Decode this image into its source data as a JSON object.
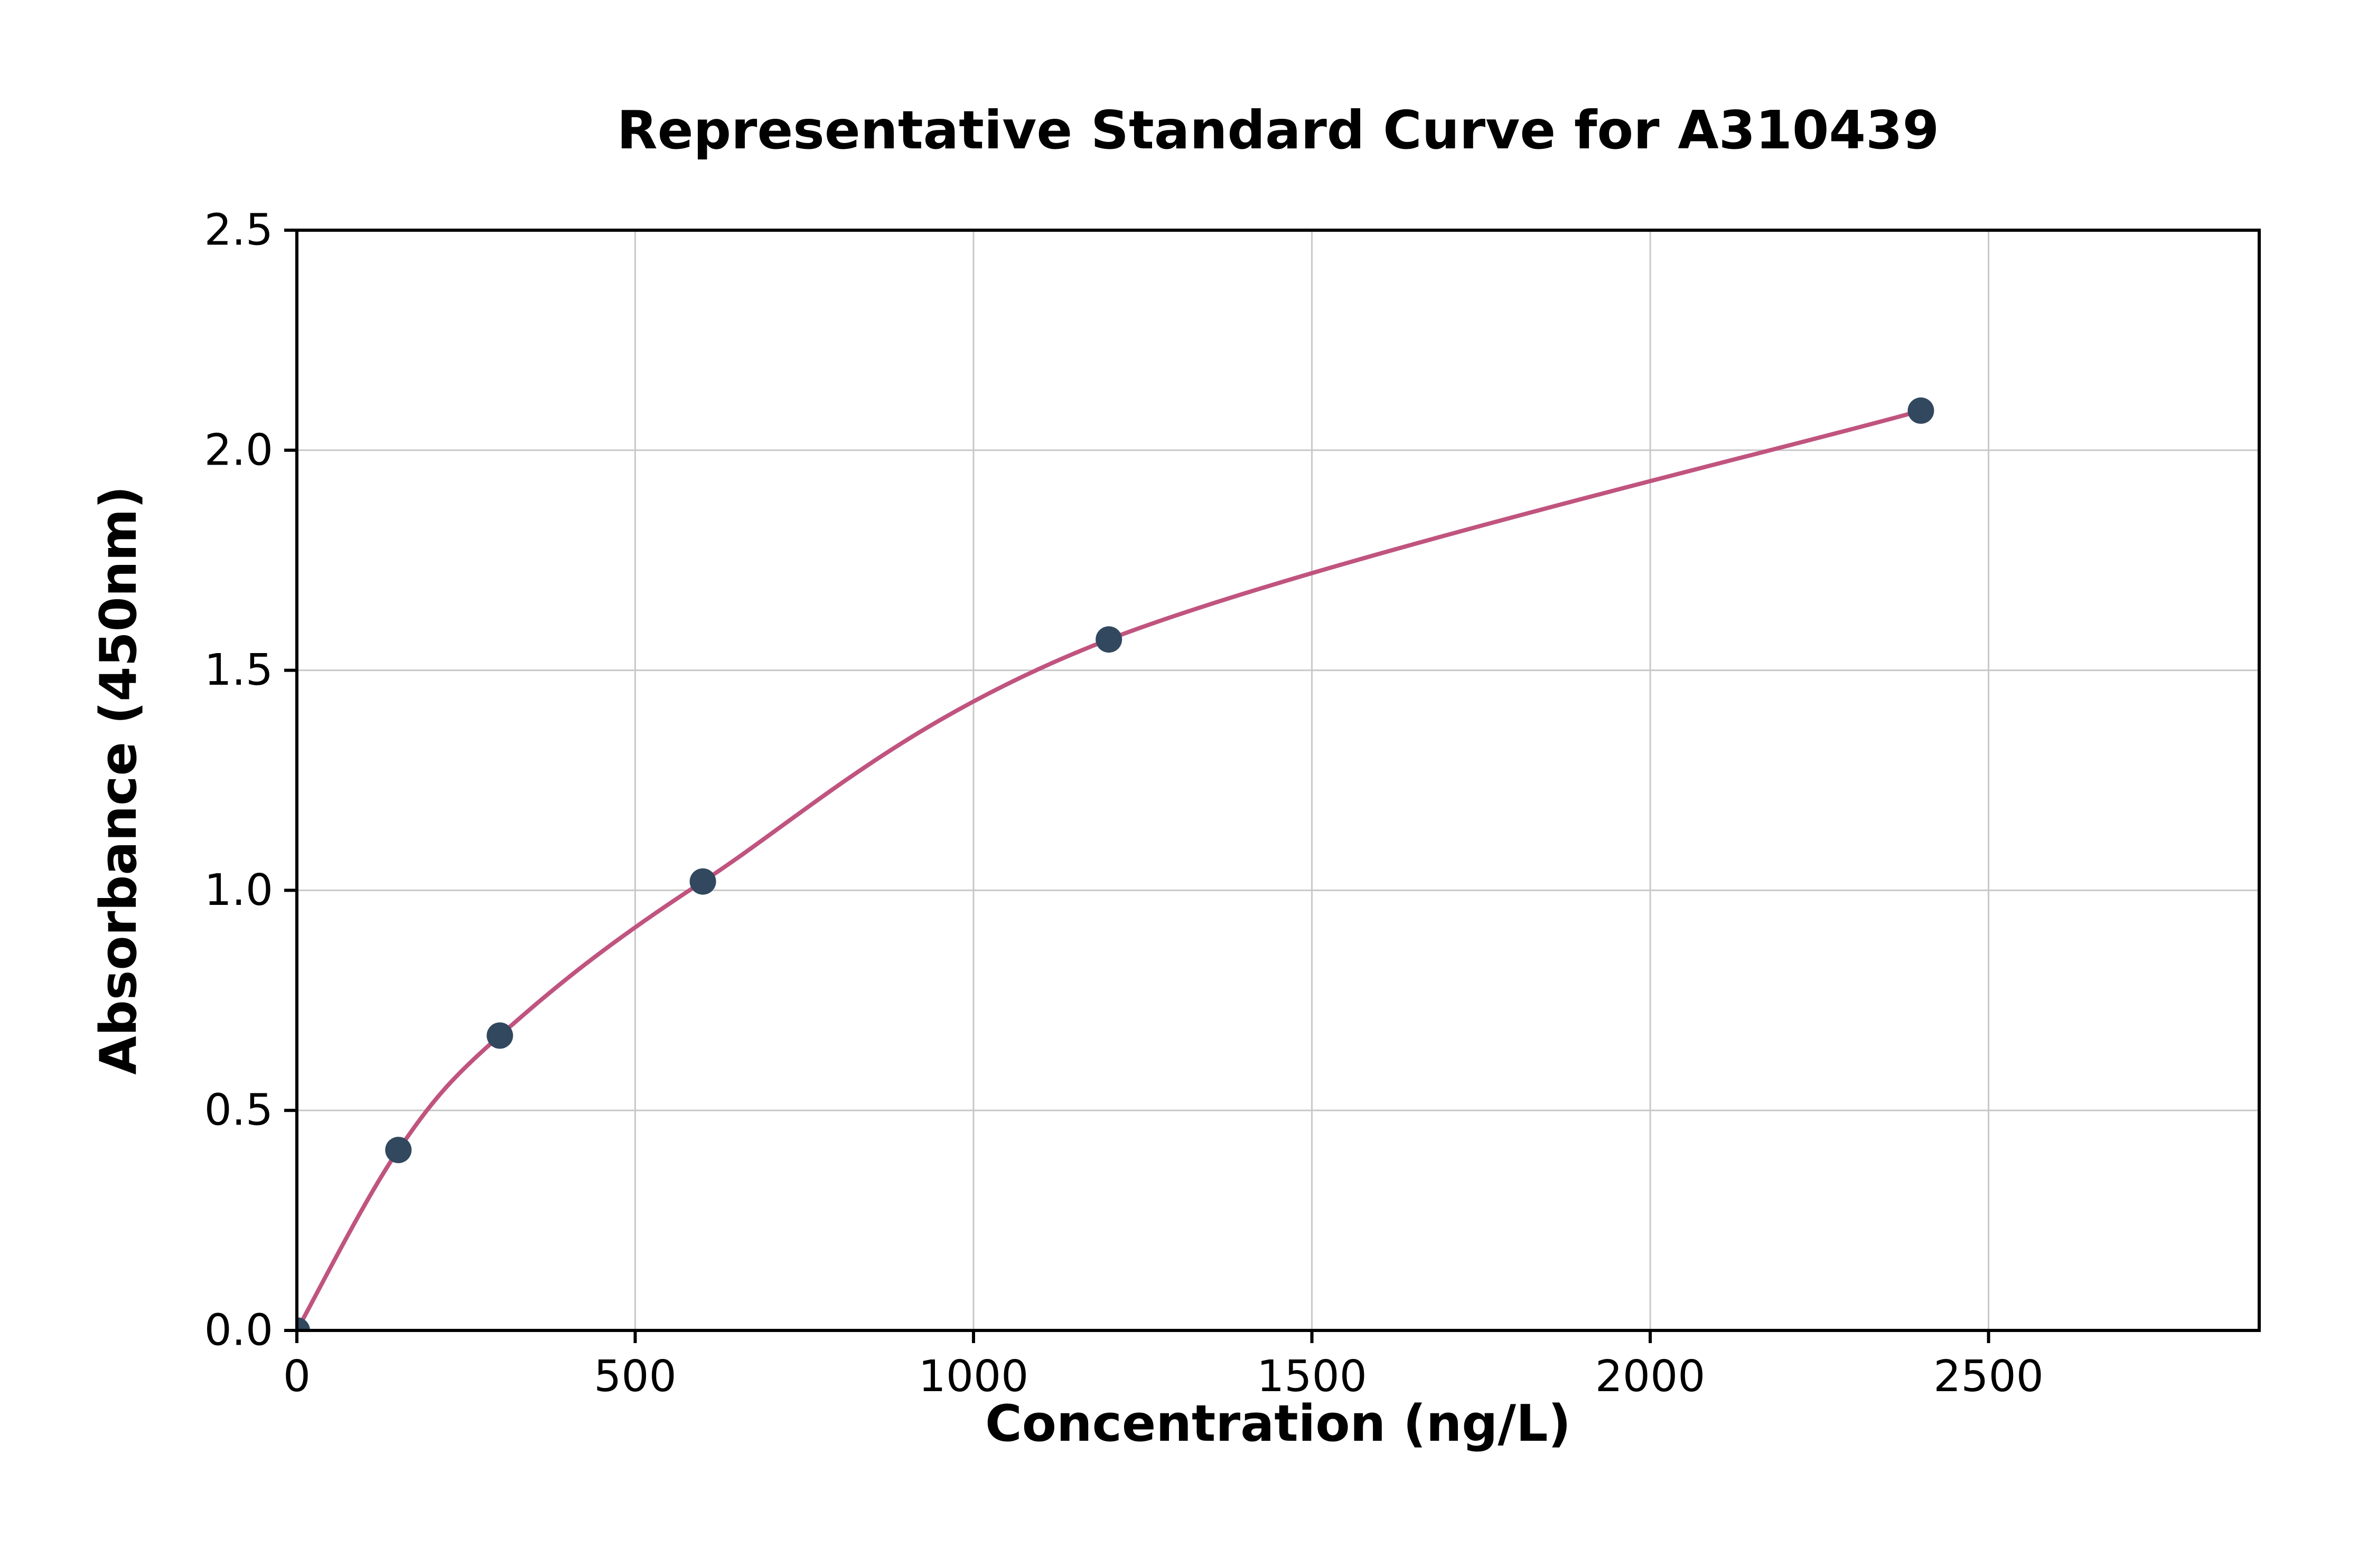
{
  "chart_data": {
    "type": "scatter",
    "title": "Representative Standard Curve for A310439",
    "xlabel": "Concentration (ng/L)",
    "ylabel": "Absorbance (450nm)",
    "xlim": [
      0,
      2900
    ],
    "ylim": [
      0,
      2.5
    ],
    "xticks": [
      0,
      500,
      1000,
      1500,
      2000,
      2500
    ],
    "xtick_labels": [
      "0",
      "500",
      "1000",
      "1500",
      "2000",
      "2500"
    ],
    "yticks": [
      0,
      0.5,
      1,
      1.5,
      2,
      2.5
    ],
    "ytick_labels": [
      "0.0",
      "0.5",
      "1.0",
      "1.5",
      "2.0",
      "2.5"
    ],
    "grid": true,
    "legend_position": "none",
    "series": [
      {
        "name": "standards",
        "points": [
          [
            0,
            0.0
          ],
          [
            150,
            0.41
          ],
          [
            300,
            0.67
          ],
          [
            600,
            1.02
          ],
          [
            1200,
            1.57
          ],
          [
            2400,
            2.09
          ]
        ]
      }
    ],
    "fit_curve": {
      "through": [
        [
          0,
          0.0
        ],
        [
          150,
          0.41
        ],
        [
          300,
          0.67
        ],
        [
          600,
          1.02
        ],
        [
          1200,
          1.57
        ],
        [
          2400,
          2.09
        ]
      ]
    },
    "colors": {
      "curve": "#c0547f",
      "marker": "#31485f",
      "grid": "#c8c8c8",
      "axis": "#000000",
      "text": "#000000",
      "background": "#ffffff"
    }
  }
}
